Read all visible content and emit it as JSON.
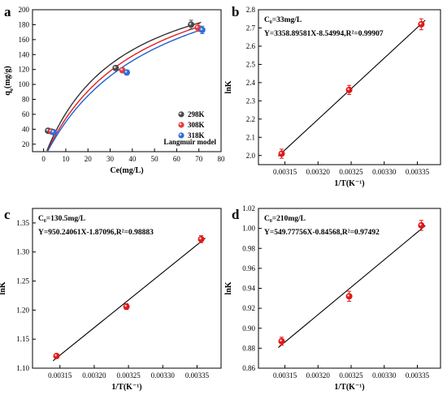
{
  "chart_data": [
    {
      "panel_label": "a",
      "type": "scatter",
      "xlabel": "Ce(mg/L)",
      "ylabel": "q_e(mg/g)",
      "xlim": [
        -5,
        80
      ],
      "ylim": [
        10,
        200
      ],
      "x_ticks": [
        0,
        10,
        20,
        30,
        40,
        50,
        60,
        70,
        80
      ],
      "y_ticks": [
        20,
        40,
        60,
        80,
        100,
        120,
        140,
        160,
        180,
        200
      ],
      "legend_position": "right",
      "model_label": "Langmuir model",
      "series": [
        {
          "name": "298K",
          "color": "#4a4a4a",
          "curve_color": "#333333",
          "points": [
            {
              "x": 2.0,
              "y": 38,
              "err": 1.5
            },
            {
              "x": 32.5,
              "y": 122,
              "err": 3
            },
            {
              "x": 66.5,
              "y": 180,
              "err": 6
            }
          ],
          "curve": {
            "qmax": 272,
            "KL": 0.029
          }
        },
        {
          "name": "308K",
          "color": "#e63b3b",
          "curve_color": "#e02020",
          "points": [
            {
              "x": 3.5,
              "y": 37,
              "err": 1.5
            },
            {
              "x": 35.5,
              "y": 119,
              "err": 3
            },
            {
              "x": 69.5,
              "y": 176,
              "err": 5
            }
          ],
          "curve": {
            "qmax": 285,
            "KL": 0.0235
          }
        },
        {
          "name": "318K",
          "color": "#2f6fd6",
          "curve_color": "#1f5fd0",
          "points": [
            {
              "x": 4.5,
              "y": 36,
              "err": 1.5
            },
            {
              "x": 37.5,
              "y": 116,
              "err": 3
            },
            {
              "x": 71.5,
              "y": 173,
              "err": 5
            }
          ],
          "curve": {
            "qmax": 292,
            "KL": 0.0205
          }
        }
      ]
    },
    {
      "panel_label": "b",
      "type": "scatter",
      "xlabel": "1/T(K⁻¹)",
      "ylabel": "lnK",
      "xlim": [
        0.00311,
        0.003385
      ],
      "ylim": [
        1.95,
        2.8
      ],
      "x_ticks": [
        0.00315,
        0.0032,
        0.00325,
        0.0033,
        0.00335
      ],
      "x_tick_labels": [
        "0.00315",
        "0.00320",
        "0.00325",
        "0.00330",
        "0.00335"
      ],
      "y_ticks": [
        2.0,
        2.1,
        2.2,
        2.3,
        2.4,
        2.5,
        2.6,
        2.7,
        2.8
      ],
      "y_tick_labels": [
        "2.0",
        "2.1",
        "2.2",
        "2.3",
        "2.4",
        "2.5",
        "2.6",
        "2.7",
        "2.8"
      ],
      "annotation_line1": "C₀=33mg/L",
      "annotation_line2": "Y=3358.89581X-8.54994,R²=0.99907",
      "fit": {
        "slope": 3358.89581,
        "intercept": -8.54994
      },
      "point_color": "#e01818",
      "points": [
        {
          "x": 0.003145,
          "y": 2.01,
          "err": 0.025
        },
        {
          "x": 0.003247,
          "y": 2.36,
          "err": 0.025
        },
        {
          "x": 0.003356,
          "y": 2.72,
          "err": 0.03
        }
      ]
    },
    {
      "panel_label": "c",
      "type": "scatter",
      "xlabel": "1/T(K⁻¹)",
      "ylabel": "lnK",
      "xlim": [
        0.00311,
        0.003385
      ],
      "ylim": [
        1.1,
        1.375
      ],
      "x_ticks": [
        0.00315,
        0.0032,
        0.00325,
        0.0033,
        0.00335
      ],
      "x_tick_labels": [
        "0.00315",
        "0.00320",
        "0.00325",
        "0.00330",
        "0.00335"
      ],
      "y_ticks": [
        1.1,
        1.15,
        1.2,
        1.25,
        1.3,
        1.35
      ],
      "y_tick_labels": [
        "1.10",
        "1.15",
        "1.20",
        "1.25",
        "1.30",
        "1.35"
      ],
      "annotation_line1": "C₀=130.5mg/L",
      "annotation_line2": "Y=950.24061X-1.87096,R²=0.98883",
      "fit": {
        "slope": 950.24061,
        "intercept": -1.87096
      },
      "point_color": "#e01818",
      "points": [
        {
          "x": 0.003145,
          "y": 1.121,
          "err": 0.004
        },
        {
          "x": 0.003247,
          "y": 1.206,
          "err": 0.005
        },
        {
          "x": 0.003356,
          "y": 1.322,
          "err": 0.006
        }
      ]
    },
    {
      "panel_label": "d",
      "type": "scatter",
      "xlabel": "1/T(K⁻¹)",
      "ylabel": "lnK",
      "xlim": [
        0.00311,
        0.003385
      ],
      "ylim": [
        0.86,
        1.02
      ],
      "x_ticks": [
        0.00315,
        0.0032,
        0.00325,
        0.0033,
        0.00335
      ],
      "x_tick_labels": [
        "0.00315",
        "0.00320",
        "0.00325",
        "0.00330",
        "0.00335"
      ],
      "y_ticks": [
        0.86,
        0.88,
        0.9,
        0.92,
        0.94,
        0.96,
        0.98,
        1.0,
        1.02
      ],
      "y_tick_labels": [
        "0.86",
        "0.88",
        "0.90",
        "0.92",
        "0.94",
        "0.96",
        "0.98",
        "1.00",
        "1.02"
      ],
      "annotation_line1": "C₀=210mg/L",
      "annotation_line2": "Y=549.77756X-0.84568,R²=0.97492",
      "fit": {
        "slope": 549.77756,
        "intercept": -0.84568
      },
      "point_color": "#e01818",
      "points": [
        {
          "x": 0.003145,
          "y": 0.887,
          "err": 0.004
        },
        {
          "x": 0.003247,
          "y": 0.932,
          "err": 0.005
        },
        {
          "x": 0.003356,
          "y": 1.003,
          "err": 0.005
        }
      ]
    }
  ]
}
